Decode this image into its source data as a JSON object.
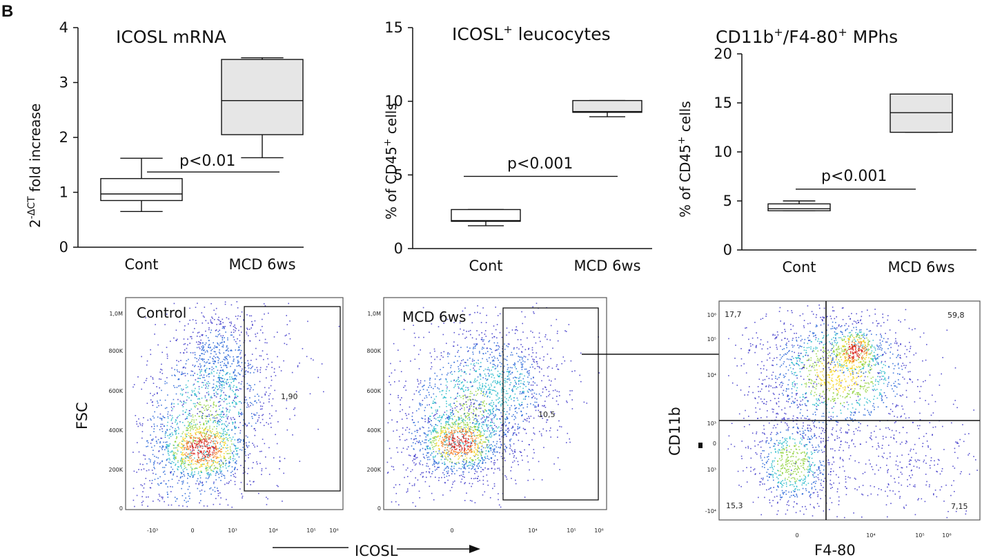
{
  "panel_label": "B",
  "chart_data": [
    {
      "type": "boxplot",
      "title": "ICOSL mRNA",
      "ylabel_base": "2",
      "ylabel_sup": "-ΔCT",
      "ylabel_rest": " fold increase",
      "yticks": [
        "0",
        "1",
        "2",
        "3",
        "4"
      ],
      "ylim": [
        0,
        4
      ],
      "categories": [
        "Cont",
        "MCD 6ws"
      ],
      "boxes": [
        {
          "name": "Cont",
          "min": 0.65,
          "q1": 0.85,
          "median": 0.97,
          "q3": 1.25,
          "max": 1.62,
          "fill": "#ffffff"
        },
        {
          "name": "MCD 6ws",
          "min": 1.63,
          "q1": 2.05,
          "median": 2.67,
          "q3": 3.42,
          "max": 3.45,
          "fill": "#e6e6e6"
        }
      ],
      "pvalue": "p<0.01",
      "pvalue_line_y": 1.37
    },
    {
      "type": "boxplot",
      "title_base": "ICOSL",
      "title_sup": "+",
      "title_rest": " leucocytes",
      "ylabel_base": "% of CD45",
      "ylabel_sup": "+",
      "ylabel_rest": " cells",
      "yticks": [
        "0",
        "5",
        "10",
        "15"
      ],
      "ylim": [
        0,
        15
      ],
      "categories": [
        "Cont",
        "MCD 6ws"
      ],
      "boxes": [
        {
          "name": "Cont",
          "min": 1.55,
          "q1": 1.85,
          "median": 1.9,
          "q3": 2.65,
          "max": 2.65,
          "fill": "#ffffff"
        },
        {
          "name": "MCD 6ws",
          "min": 8.95,
          "q1": 9.25,
          "median": 9.3,
          "q3": 10.05,
          "max": 10.05,
          "fill": "#e6e6e6"
        }
      ],
      "pvalue": "p<0.001",
      "pvalue_line_y": 4.9
    },
    {
      "type": "boxplot",
      "title_base": "CD11b",
      "title_sup1": "+",
      "title_mid": "/F4-80",
      "title_sup2": "+",
      "title_rest": " MPhs",
      "ylabel_base": "% of CD45",
      "ylabel_sup": "+",
      "ylabel_rest": " cells",
      "yticks": [
        "0",
        "5",
        "10",
        "15",
        "20"
      ],
      "ylim": [
        0,
        20
      ],
      "categories": [
        "Cont",
        "MCD 6ws"
      ],
      "boxes": [
        {
          "name": "Cont",
          "min": 4.0,
          "q1": 4.0,
          "median": 4.2,
          "q3": 4.7,
          "max": 5.0,
          "fill": "#ffffff"
        },
        {
          "name": "MCD 6ws",
          "min": 12.0,
          "q1": 12.0,
          "median": 14.0,
          "q3": 15.9,
          "max": 15.9,
          "fill": "#e6e6e6"
        }
      ],
      "pvalue": "p<0.001",
      "pvalue_line_y": 6.2
    },
    {
      "type": "scatter",
      "subtype": "flow-cytometry-density",
      "label": "Control",
      "ylabel": "FSC",
      "yticks": [
        "0",
        "200K",
        "400K",
        "600K",
        "800K",
        "1,0M"
      ],
      "xticks": [
        "-10³",
        "0",
        "10³",
        "10⁴",
        "10⁵",
        "10⁶"
      ],
      "gate_value": "1,90"
    },
    {
      "type": "scatter",
      "subtype": "flow-cytometry-density",
      "label": "MCD 6ws",
      "xlabel": "ICOSL",
      "yticks": [
        "0",
        "200K",
        "400K",
        "600K",
        "800K",
        "1,0M"
      ],
      "xticks": [
        "0",
        "10⁴",
        "10⁵",
        "10⁶"
      ],
      "gate_value": "10,5"
    },
    {
      "type": "scatter",
      "subtype": "flow-cytometry-quadrant",
      "xlabel": "F4-80",
      "ylabel": "CD11b",
      "yticks": [
        "-10⁴",
        "10³",
        "0",
        "10³",
        "10⁴",
        "10⁵",
        "10⁶"
      ],
      "xticks": [
        "0",
        "10⁴",
        "10⁵",
        "10⁶"
      ],
      "quadrants": {
        "top_left": "17,7",
        "top_right": "59,8",
        "bottom_left": "15,3",
        "bottom_right": "7,15"
      }
    }
  ],
  "colors": {
    "box_fill_mcd": "#e6e6e6",
    "box_fill_cont": "#ffffff",
    "axis": "#111111"
  }
}
